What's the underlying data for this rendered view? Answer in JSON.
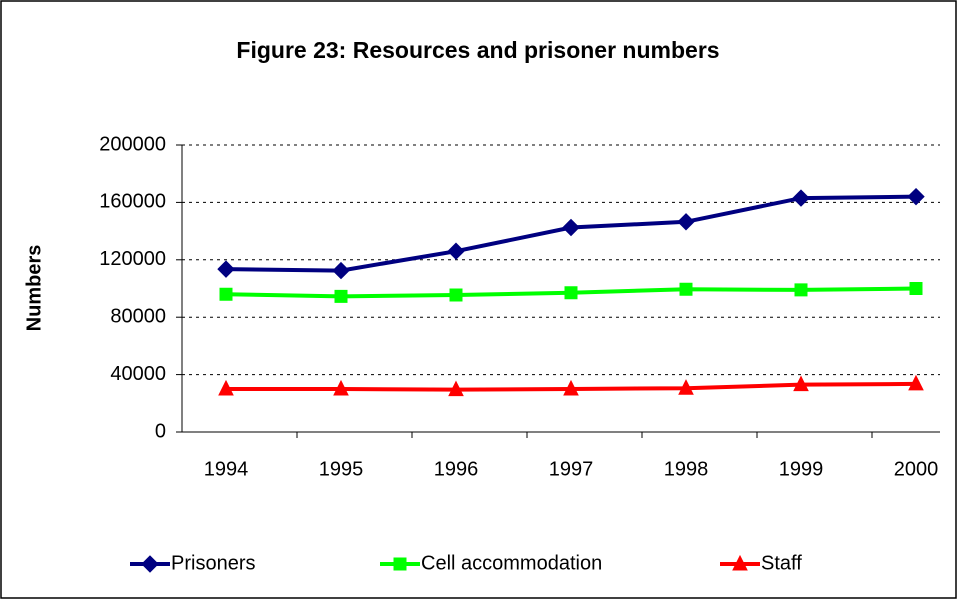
{
  "chart_data": {
    "type": "line",
    "title": "Figure 23:  Resources and prisoner numbers",
    "y_label": "Numbers",
    "categories": [
      "1994",
      "1995",
      "1996",
      "1997",
      "1998",
      "1999",
      "2000"
    ],
    "series": [
      {
        "name": "Prisoners",
        "color": "#000080",
        "marker": "diamond",
        "values": [
          113500,
          112500,
          126000,
          142500,
          146500,
          163000,
          164000
        ]
      },
      {
        "name": "Cell accommodation",
        "color": "#00ff00",
        "marker": "square",
        "values": [
          96000,
          94500,
          95500,
          97000,
          99500,
          99000,
          100000
        ]
      },
      {
        "name": "Staff",
        "color": "#ff0000",
        "marker": "triangle",
        "values": [
          30000,
          30000,
          29500,
          30000,
          30500,
          33000,
          33500
        ]
      }
    ],
    "ylim": [
      0,
      200000
    ],
    "yticks": [
      0,
      40000,
      80000,
      120000,
      160000,
      200000
    ],
    "grid": true,
    "legend": "bottom"
  }
}
